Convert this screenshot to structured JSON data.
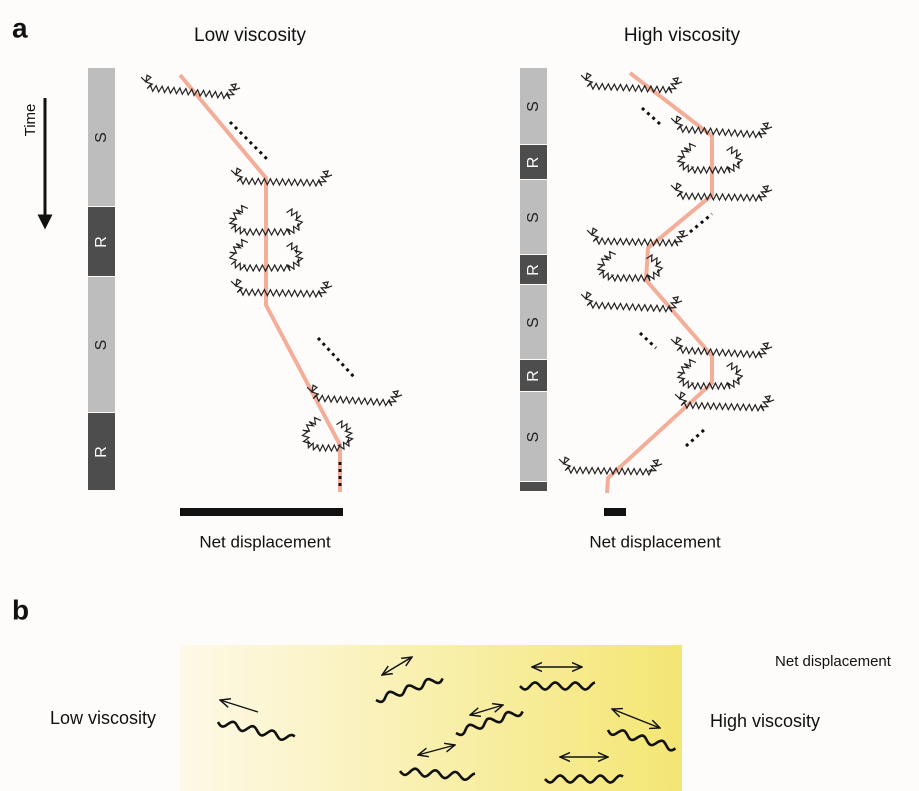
{
  "panel_a": {
    "label": "a",
    "time_label": "Time",
    "left": {
      "title": "Low viscosity",
      "segments": [
        "S",
        "R",
        "S",
        "R"
      ],
      "footer": "Net displacement"
    },
    "right": {
      "title": "High viscosity",
      "segments": [
        "S",
        "R",
        "S",
        "R",
        "S",
        "R",
        "S"
      ],
      "footer": "Net displacement"
    }
  },
  "panel_b": {
    "label": "b",
    "left_label": "Low viscosity",
    "right_label": "High viscosity",
    "header": "Net displacement"
  }
}
